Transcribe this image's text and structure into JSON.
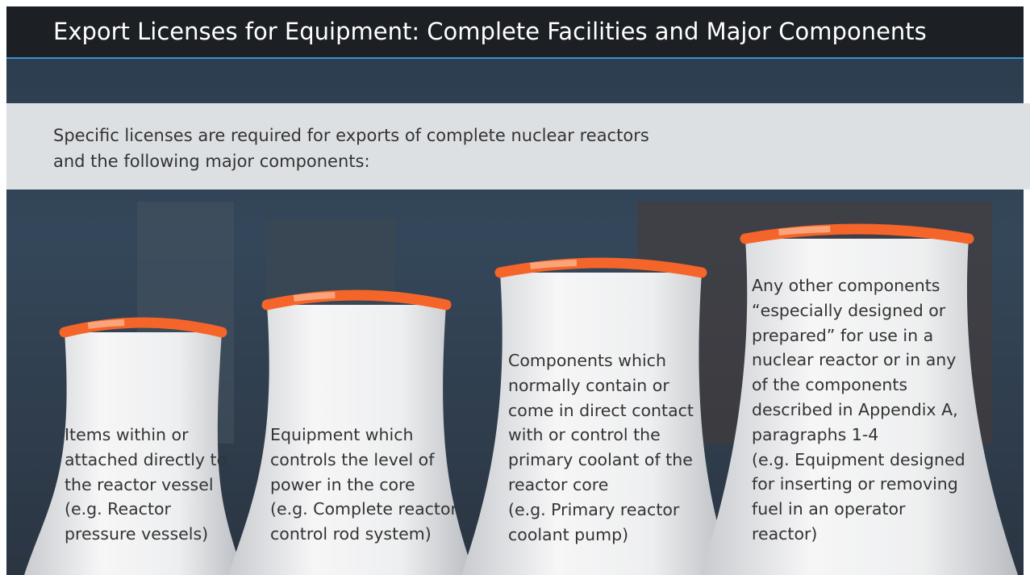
{
  "header": {
    "title": "Export Licenses for Equipment: Complete Facilities and Major Components"
  },
  "intro": {
    "lines": [
      "Specific licenses are required for exports of complete nuclear reactors",
      "and the following major components:"
    ]
  },
  "towers": [
    {
      "lines": [
        "Items within or",
        "attached directly to",
        "the reactor vessel",
        "(e.g. Reactor",
        "pressure vessels)"
      ]
    },
    {
      "lines": [
        "Equipment which",
        "controls the level of",
        "power in the core",
        "(e.g. Complete reactor",
        "control rod system)"
      ]
    },
    {
      "lines": [
        "Components which",
        "normally contain or",
        "come in direct contact",
        "with or control the",
        "primary coolant of the",
        "reactor core",
        "(e.g. Primary reactor",
        "coolant pump)"
      ]
    },
    {
      "lines": [
        "Any other components",
        "“especially designed or",
        "prepared” for use in a",
        "nuclear reactor or in any",
        "of the components",
        "described in Appendix A,",
        "paragraphs 1-4",
        "(e.g. Equipment designed",
        "for inserting or removing",
        "fuel in an operator",
        "reactor)"
      ]
    }
  ]
}
